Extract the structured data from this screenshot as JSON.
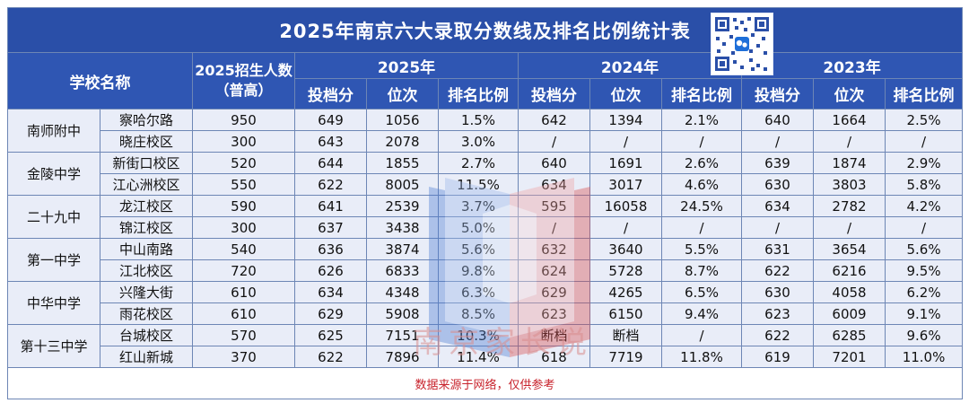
{
  "title": "2025年南京六大录取分数线及排名比例统计表",
  "header": {
    "school_col": "学校名称",
    "enroll_col": "2025招生人数（普高）",
    "years": [
      "2025年",
      "2024年",
      "2023年"
    ],
    "sub_cols": [
      "投档分",
      "位次",
      "排名比例"
    ]
  },
  "schools": [
    {
      "name": "南师附中",
      "campuses": [
        {
          "campus": "察哈尔路",
          "enroll": "950",
          "y2025": [
            "649",
            "1056",
            "1.5%"
          ],
          "y2024": [
            "642",
            "1394",
            "2.1%"
          ],
          "y2023": [
            "640",
            "1664",
            "2.5%"
          ]
        },
        {
          "campus": "晓庄校区",
          "enroll": "300",
          "y2025": [
            "643",
            "2078",
            "3.0%"
          ],
          "y2024": [
            "/",
            "/",
            "/"
          ],
          "y2023": [
            "/",
            "/",
            "/"
          ]
        }
      ]
    },
    {
      "name": "金陵中学",
      "campuses": [
        {
          "campus": "新街口校区",
          "enroll": "520",
          "y2025": [
            "644",
            "1855",
            "2.7%"
          ],
          "y2024": [
            "640",
            "1691",
            "2.6%"
          ],
          "y2023": [
            "639",
            "1874",
            "2.9%"
          ]
        },
        {
          "campus": "江心洲校区",
          "enroll": "550",
          "y2025": [
            "622",
            "8005",
            "11.5%"
          ],
          "y2024": [
            "634",
            "3017",
            "4.6%"
          ],
          "y2023": [
            "630",
            "3803",
            "5.8%"
          ]
        }
      ]
    },
    {
      "name": "二十九中",
      "campuses": [
        {
          "campus": "龙江校区",
          "enroll": "590",
          "y2025": [
            "641",
            "2539",
            "3.7%"
          ],
          "y2024": [
            "595",
            "16058",
            "24.5%"
          ],
          "y2023": [
            "634",
            "2782",
            "4.2%"
          ]
        },
        {
          "campus": "锦江校区",
          "enroll": "300",
          "y2025": [
            "637",
            "3438",
            "5.0%"
          ],
          "y2024": [
            "/",
            "/",
            "/"
          ],
          "y2023": [
            "/",
            "/",
            "/"
          ]
        }
      ]
    },
    {
      "name": "第一中学",
      "campuses": [
        {
          "campus": "中山南路",
          "enroll": "540",
          "y2025": [
            "636",
            "3874",
            "5.6%"
          ],
          "y2024": [
            "632",
            "3640",
            "5.5%"
          ],
          "y2023": [
            "631",
            "3654",
            "5.6%"
          ]
        },
        {
          "campus": "江北校区",
          "enroll": "720",
          "y2025": [
            "626",
            "6833",
            "9.8%"
          ],
          "y2024": [
            "624",
            "5728",
            "8.7%"
          ],
          "y2023": [
            "622",
            "6216",
            "9.5%"
          ]
        }
      ]
    },
    {
      "name": "中华中学",
      "campuses": [
        {
          "campus": "兴隆大街",
          "enroll": "610",
          "y2025": [
            "634",
            "4348",
            "6.3%"
          ],
          "y2024": [
            "629",
            "4265",
            "6.5%"
          ],
          "y2023": [
            "630",
            "4058",
            "6.2%"
          ]
        },
        {
          "campus": "雨花校区",
          "enroll": "610",
          "y2025": [
            "629",
            "5908",
            "8.5%"
          ],
          "y2024": [
            "623",
            "6150",
            "9.4%"
          ],
          "y2023": [
            "623",
            "6009",
            "9.1%"
          ]
        }
      ]
    },
    {
      "name": "第十三中学",
      "campuses": [
        {
          "campus": "台城校区",
          "enroll": "570",
          "y2025": [
            "625",
            "7151",
            "10.3%"
          ],
          "y2024": [
            "断档",
            "断档",
            "/"
          ],
          "y2023": [
            "622",
            "6285",
            "9.6%"
          ]
        },
        {
          "campus": "红山新城",
          "enroll": "370",
          "y2025": [
            "622",
            "7896",
            "11.4%"
          ],
          "y2024": [
            "618",
            "7719",
            "11.8%"
          ],
          "y2023": [
            "619",
            "7201",
            "11.0%"
          ]
        }
      ]
    }
  ],
  "footer": "数据来源于网络，仅供参考",
  "watermark": "南京家长说",
  "colors": {
    "header_bg": "#2f56b3",
    "title_bg": "#2a4fa8",
    "row_bg": "#e9edf8",
    "footer_text": "#c8232c"
  },
  "icons": {
    "qr": "qr-code-icon",
    "watermark_logo": "book-logo-icon"
  }
}
